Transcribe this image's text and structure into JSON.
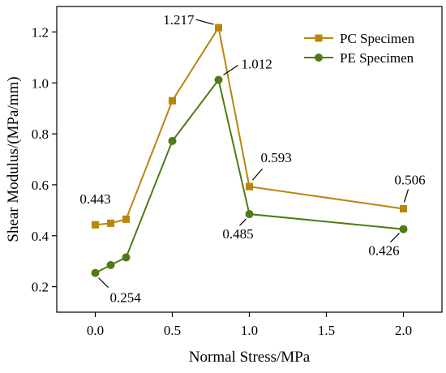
{
  "chart_data": {
    "type": "line",
    "xlabel": "Normal Stress/MPa",
    "ylabel": "Shear Modulus/(MPa/mm)",
    "xlim": [
      -0.25,
      2.25
    ],
    "ylim": [
      0.1,
      1.3
    ],
    "xticks": [
      "0.0",
      "0.5",
      "1.0",
      "1.5",
      "2.0"
    ],
    "xtick_values": [
      0,
      0.5,
      1.0,
      1.5,
      2.0
    ],
    "yticks": [
      "0.2",
      "0.4",
      "0.6",
      "0.8",
      "1.0",
      "1.2"
    ],
    "ytick_values": [
      0.2,
      0.4,
      0.6,
      0.8,
      1.0,
      1.2
    ],
    "grid": false,
    "legend_position": "top-right",
    "series": [
      {
        "name": "PC Specimen",
        "marker": "square",
        "color": "#B8860B",
        "x": [
          0,
          0.1,
          0.2,
          0.5,
          0.8,
          1.0,
          2.0
        ],
        "y": [
          0.443,
          0.449,
          0.465,
          0.93,
          1.217,
          0.593,
          0.506
        ]
      },
      {
        "name": "PE Specimen",
        "marker": "circle",
        "color": "#4F7A16",
        "x": [
          0,
          0.1,
          0.2,
          0.5,
          0.8,
          1.0,
          2.0
        ],
        "y": [
          0.254,
          0.285,
          0.315,
          0.772,
          1.012,
          0.485,
          0.426
        ]
      }
    ],
    "annotations": [
      {
        "text": "0.443",
        "series": 0,
        "point": 0
      },
      {
        "text": "1.217",
        "series": 0,
        "point": 4
      },
      {
        "text": "0.593",
        "series": 0,
        "point": 5
      },
      {
        "text": "0.506",
        "series": 0,
        "point": 6
      },
      {
        "text": "0.254",
        "series": 1,
        "point": 0
      },
      {
        "text": "1.012",
        "series": 1,
        "point": 4
      },
      {
        "text": "0.485",
        "series": 1,
        "point": 5
      },
      {
        "text": "0.426",
        "series": 1,
        "point": 6
      }
    ]
  }
}
